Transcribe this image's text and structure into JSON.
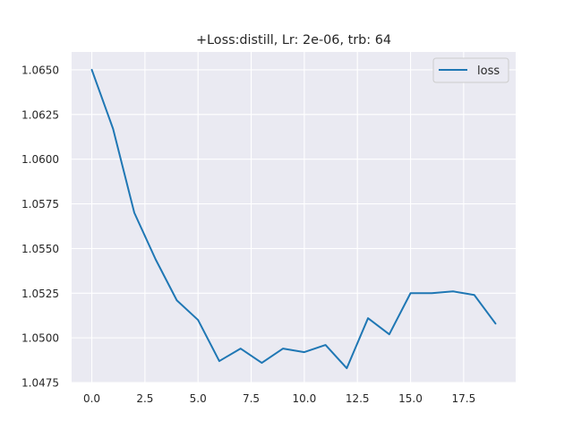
{
  "chart_data": {
    "type": "line",
    "title": "+Loss:distill, Lr: 2e-06, trb: 64",
    "xlabel": "",
    "ylabel": "",
    "xlim": [
      -0.95,
      19.95
    ],
    "ylim": [
      1.0475,
      1.066
    ],
    "xticks": [
      0.0,
      2.5,
      5.0,
      7.5,
      10.0,
      12.5,
      15.0,
      17.5
    ],
    "xtick_labels": [
      "0.0",
      "2.5",
      "5.0",
      "7.5",
      "10.0",
      "12.5",
      "15.0",
      "17.5"
    ],
    "yticks": [
      1.0475,
      1.05,
      1.0525,
      1.055,
      1.0575,
      1.06,
      1.0625,
      1.065
    ],
    "ytick_labels": [
      "1.0475",
      "1.0500",
      "1.0525",
      "1.0550",
      "1.0575",
      "1.0600",
      "1.0625",
      "1.0650"
    ],
    "grid": true,
    "legend_position": "top-right",
    "series": [
      {
        "name": "loss",
        "color": "#1f77b4",
        "x": [
          0,
          1,
          2,
          3,
          4,
          5,
          6,
          7,
          8,
          9,
          10,
          11,
          12,
          13,
          14,
          15,
          16,
          17,
          18,
          19
        ],
        "values": [
          1.065,
          1.0617,
          1.057,
          1.0544,
          1.0521,
          1.051,
          1.0487,
          1.0494,
          1.0486,
          1.0494,
          1.0492,
          1.0496,
          1.0483,
          1.0511,
          1.0502,
          1.0525,
          1.0525,
          1.0526,
          1.0524,
          1.0508
        ]
      }
    ]
  },
  "colors": {
    "plot_background": "#eaeaf2",
    "grid": "#ffffff",
    "text": "#262626"
  }
}
